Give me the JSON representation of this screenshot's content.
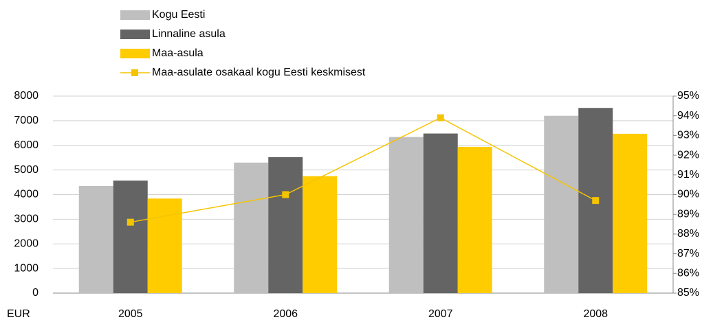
{
  "chart_data": {
    "type": "bar-line",
    "y_label": "EUR",
    "categories": [
      "2005",
      "2006",
      "2007",
      "2008"
    ],
    "series": [
      {
        "name": "Kogu Eesti",
        "color": "#bfbfbf",
        "type": "bar",
        "values": [
          4350,
          5300,
          6340,
          7200
        ]
      },
      {
        "name": "Linnaline asula",
        "color": "#646464",
        "type": "bar",
        "values": [
          4570,
          5520,
          6480,
          7520
        ]
      },
      {
        "name": "Maa-asula",
        "color": "#ffcc00",
        "type": "bar",
        "values": [
          3840,
          4750,
          5940,
          6470
        ]
      },
      {
        "name": "Maa-asulate osakaal kogu Eesti keskmisest",
        "color": "#f5c400",
        "type": "line",
        "axis": "y2",
        "values": [
          88.6,
          90.0,
          93.9,
          89.7
        ]
      }
    ],
    "ylim": [
      0,
      8000
    ],
    "yticks": [
      0,
      1000,
      2000,
      3000,
      4000,
      5000,
      6000,
      7000,
      8000
    ],
    "y2lim": [
      85,
      95
    ],
    "y2ticks": [
      {
        "value": 85,
        "label": "85%"
      },
      {
        "value": 86,
        "label": "86%"
      },
      {
        "value": 87,
        "label": "87%"
      },
      {
        "value": 88,
        "label": "88%"
      },
      {
        "value": 89,
        "label": "89%"
      },
      {
        "value": 90,
        "label": "90%"
      },
      {
        "value": 91,
        "label": "91%"
      },
      {
        "value": 92,
        "label": "92%"
      },
      {
        "value": 93,
        "label": "93%"
      },
      {
        "value": 94,
        "label": "94%"
      },
      {
        "value": 95,
        "label": "95%"
      }
    ],
    "grid": true
  }
}
